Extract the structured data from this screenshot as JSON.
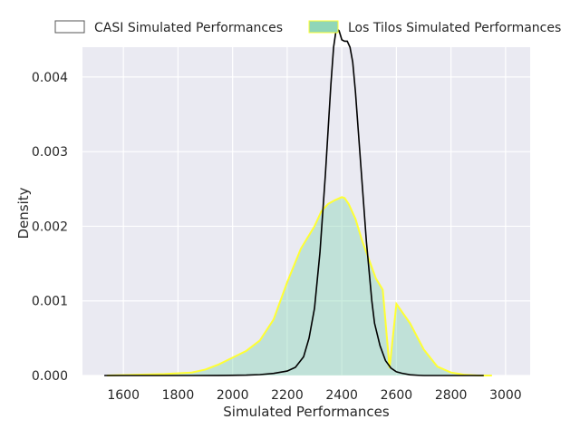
{
  "chart_data": {
    "type": "area",
    "xlabel": "Simulated Performances",
    "ylabel": "Density",
    "xlim": [
      1450,
      3090
    ],
    "ylim": [
      0,
      0.0044
    ],
    "grid": true,
    "legend_placement": "top",
    "x_ticks": [
      1600,
      1800,
      2000,
      2200,
      2400,
      2600,
      2800,
      3000
    ],
    "x_tick_labels": [
      "1600",
      "1800",
      "2000",
      "2200",
      "2400",
      "2600",
      "2800",
      "3000"
    ],
    "y_ticks": [
      0,
      0.001,
      0.002,
      0.003,
      0.004
    ],
    "y_tick_labels": [
      "0.000",
      "0.001",
      "0.002",
      "0.003",
      "0.004"
    ],
    "colors": {
      "background": "#eaeaf2",
      "grid": "#ffffff",
      "casi_line": "#000000",
      "tilos_line": "#ffff33",
      "tilos_fill": "#8fd6b8"
    },
    "series": [
      {
        "name": "CASI Simulated Performances",
        "style": "line",
        "x": [
          1530,
          1700,
          1850,
          1950,
          2050,
          2100,
          2150,
          2200,
          2230,
          2260,
          2280,
          2300,
          2320,
          2340,
          2350,
          2360,
          2370,
          2380,
          2390,
          2400,
          2410,
          2420,
          2430,
          2440,
          2450,
          2460,
          2470,
          2480,
          2490,
          2500,
          2510,
          2520,
          2540,
          2560,
          2580,
          2600,
          2620,
          2650,
          2680,
          2700,
          2800,
          2920
        ],
        "values": [
          0,
          0,
          0,
          1e-06,
          5e-06,
          1.2e-05,
          2.8e-05,
          6e-05,
          0.00011,
          0.00025,
          0.0005,
          0.0009,
          0.00165,
          0.0027,
          0.0033,
          0.0039,
          0.0044,
          0.00465,
          0.00462,
          0.0045,
          0.00448,
          0.00448,
          0.0044,
          0.0042,
          0.0038,
          0.0033,
          0.0028,
          0.0023,
          0.0018,
          0.0014,
          0.001,
          0.0007,
          0.0004,
          0.0002,
          0.0001,
          5e-05,
          3e-05,
          1e-05,
          3e-06,
          0,
          0,
          0
        ]
      },
      {
        "name": "Los Tilos Simulated Performances",
        "style": "filled",
        "x": [
          1540,
          1650,
          1750,
          1850,
          1900,
          1950,
          2000,
          2050,
          2100,
          2150,
          2200,
          2250,
          2300,
          2325,
          2350,
          2375,
          2400,
          2410,
          2425,
          2450,
          2475,
          2500,
          2525,
          2550,
          2575,
          2600,
          2650,
          2700,
          2750,
          2800,
          2850,
          2900,
          2950
        ],
        "values": [
          0,
          1e-05,
          2e-05,
          4e-05,
          8e-05,
          0.00015,
          0.00024,
          0.00033,
          0.00047,
          0.00075,
          0.00125,
          0.0017,
          0.002,
          0.0022,
          0.0023,
          0.00235,
          0.00239,
          0.00238,
          0.0023,
          0.0021,
          0.0018,
          0.00155,
          0.0013,
          0.00115,
          0.0001,
          0.00096,
          0.0007,
          0.00035,
          0.00012,
          4e-05,
          1e-05,
          0,
          0
        ]
      }
    ]
  }
}
